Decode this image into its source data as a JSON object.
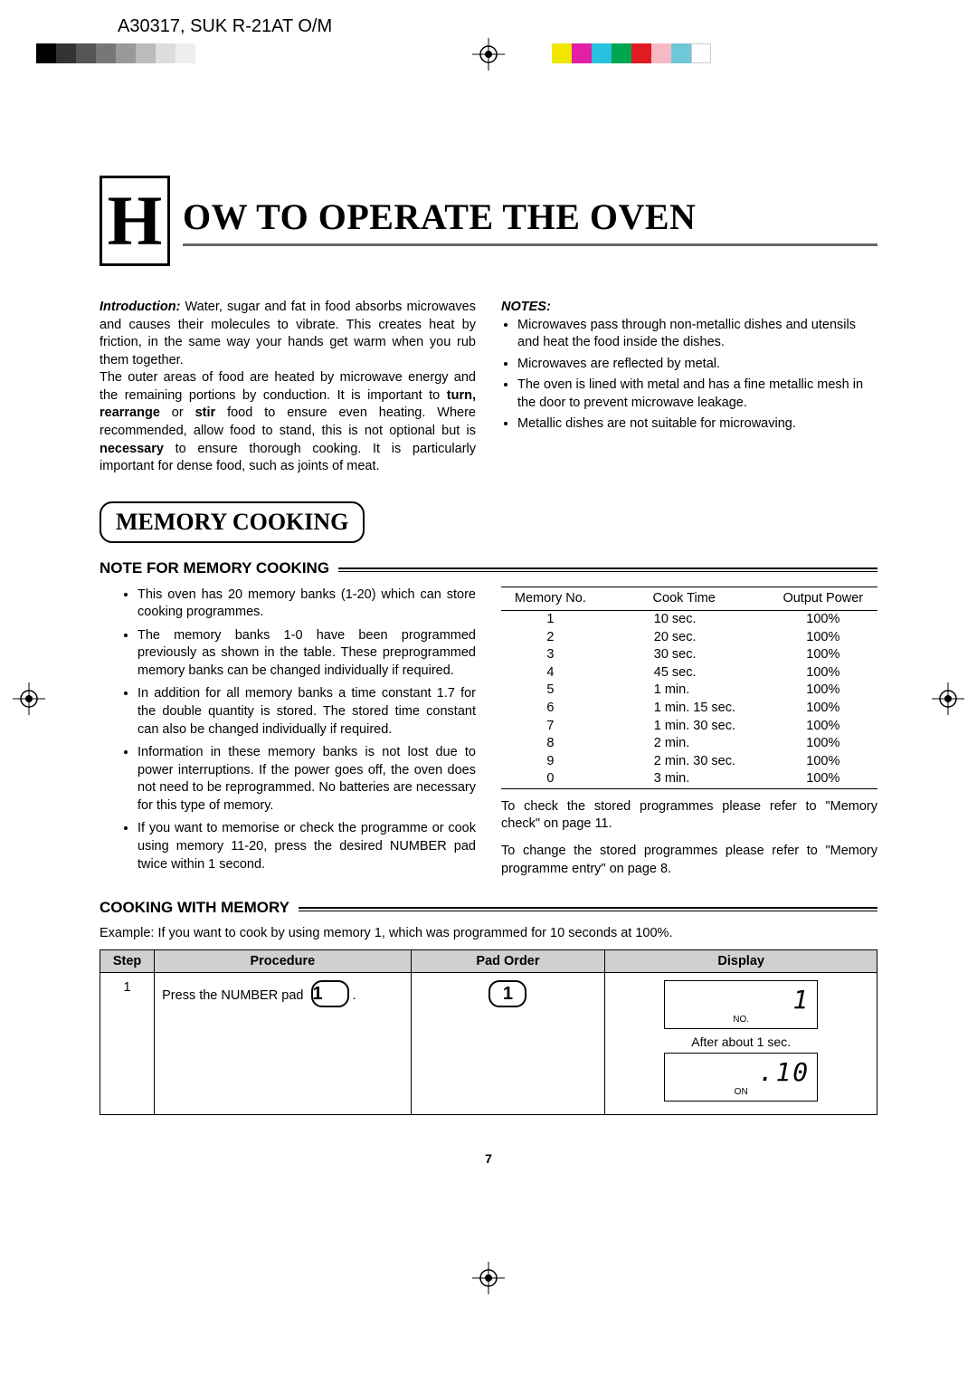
{
  "model_header": "A30317, SUK R-21AT O/M",
  "colors": {
    "gray_squares": [
      "#000000",
      "#333333",
      "#555555",
      "#777777",
      "#999999",
      "#bbbbbb",
      "#dddddd",
      "#efefef"
    ],
    "color_squares": [
      "#f0e600",
      "#e21fa6",
      "#28c1e0",
      "#00a550",
      "#e11b22",
      "#f7b9c4",
      "#6ec8d8",
      "#ffffff"
    ]
  },
  "title": {
    "drop": "H",
    "rest": "OW TO OPERATE THE OVEN"
  },
  "intro": {
    "label": "Introduction:",
    "p1": " Water, sugar and fat in food absorbs microwaves and causes their molecules to vibrate. This creates heat by friction, in the same way your hands get warm when you rub them together.",
    "p2a": "The outer areas of food are heated by microwave energy and the remaining portions by conduction. It is important to ",
    "p2b": "turn, rearrange",
    "p2c": " or ",
    "p2d": "stir",
    "p2e": " food to ensure even heating. Where recommended, allow food to stand, this is not optional but is ",
    "p2f": "necessary",
    "p2g": " to ensure thorough cooking. It is particularly important for dense food, such as joints of meat."
  },
  "notes": {
    "heading": "NOTES:",
    "items": [
      "Microwaves pass through non-metallic dishes and utensils and heat the food inside the dishes.",
      "Microwaves are reflected by metal.",
      "The oven is lined with metal and has a fine metallic mesh in the door to prevent microwave leakage.",
      "Metallic dishes are not suitable for microwaving."
    ]
  },
  "memory_badge": "MEMORY COOKING",
  "note_heading": "NOTE FOR MEMORY COOKING",
  "note_bullets": [
    "This oven has 20 memory banks (1-20) which can store cooking programmes.",
    "The memory banks 1-0 have been programmed previously as shown in the table. These preprogrammed memory banks can be changed individually if required.",
    "In addition for all memory banks a time constant 1.7 for the double quantity is stored. The stored time constant can also be changed individually if required.",
    "Information in these memory banks is not lost due to power interruptions. If the power goes off, the oven does not need to be reprogrammed. No batteries are necessary for this type of memory.",
    "If you want to memorise or check the programme or cook using memory 11-20, press the desired NUMBER pad twice within 1 second."
  ],
  "mem_table": {
    "headers": [
      "Memory No.",
      "Cook Time",
      "Output Power"
    ],
    "rows": [
      [
        "1",
        "10 sec.",
        "100%"
      ],
      [
        "2",
        "20 sec.",
        "100%"
      ],
      [
        "3",
        "30 sec.",
        "100%"
      ],
      [
        "4",
        "45 sec.",
        "100%"
      ],
      [
        "5",
        "1 min.",
        "100%"
      ],
      [
        "6",
        "1 min. 15 sec.",
        "100%"
      ],
      [
        "7",
        "1 min. 30 sec.",
        "100%"
      ],
      [
        "8",
        "2 min.",
        "100%"
      ],
      [
        "9",
        "2 min. 30 sec.",
        "100%"
      ],
      [
        "0",
        "3 min.",
        "100%"
      ]
    ]
  },
  "mem_after1": "To check the stored programmes please refer to \"Memory check\" on page 11.",
  "mem_after2": "To change the stored programmes please refer to \"Memory programme entry\" on page 8.",
  "cooking_heading": "COOKING WITH MEMORY",
  "cooking_example": "Example: If you want to cook by using memory 1, which was programmed for 10 seconds at 100%.",
  "proc_table": {
    "headers": [
      "Step",
      "Procedure",
      "Pad Order",
      "Display"
    ],
    "step": "1",
    "procedure": "Press the NUMBER pad",
    "pad": "1",
    "padorder": "1",
    "disp1_seg": "  1",
    "disp1_lbl": "NO.",
    "after_sec": "After about 1 sec.",
    "disp2_seg": ".10",
    "disp2_lbl": "ON"
  },
  "page_number": "7"
}
